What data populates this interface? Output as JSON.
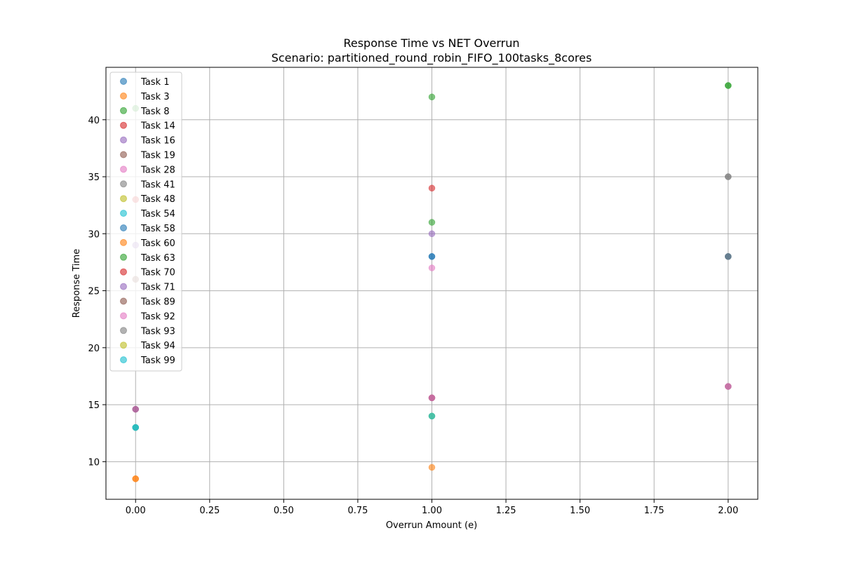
{
  "chart_data": {
    "type": "scatter",
    "title": "Response Time vs NET Overrun",
    "subtitle": "Scenario: partitioned_round_robin_FIFO_100tasks_8cores",
    "xlabel": "Overrun Amount (e)",
    "ylabel": "Response Time",
    "xlim": [
      -0.1,
      2.1
    ],
    "ylim": [
      6.7,
      44.6
    ],
    "xticks": [
      0.0,
      0.25,
      0.5,
      0.75,
      1.0,
      1.25,
      1.5,
      1.75,
      2.0
    ],
    "xtick_labels": [
      "0.00",
      "0.25",
      "0.50",
      "0.75",
      "1.00",
      "1.25",
      "1.50",
      "1.75",
      "2.00"
    ],
    "yticks": [
      10,
      15,
      20,
      25,
      30,
      35,
      40
    ],
    "ytick_labels": [
      "10",
      "15",
      "20",
      "25",
      "30",
      "35",
      "40"
    ],
    "grid": true,
    "legend_position": "top-left",
    "series": [
      {
        "name": "Task 1",
        "color": "#1f77b4",
        "points": [
          [
            0,
            13
          ],
          [
            1,
            28
          ],
          [
            2,
            28
          ]
        ]
      },
      {
        "name": "Task 3",
        "color": "#ff7f0e",
        "points": [
          [
            0,
            8.5
          ],
          [
            1,
            9.5
          ]
        ]
      },
      {
        "name": "Task 8",
        "color": "#2ca02c",
        "points": [
          [
            0,
            41
          ],
          [
            1,
            42
          ],
          [
            2,
            43
          ]
        ]
      },
      {
        "name": "Task 14",
        "color": "#d62728",
        "points": [
          [
            0,
            33
          ],
          [
            1,
            34
          ]
        ]
      },
      {
        "name": "Task 16",
        "color": "#9467bd",
        "points": [
          [
            0,
            29
          ],
          [
            1,
            30
          ]
        ]
      },
      {
        "name": "Task 19",
        "color": "#8c564b",
        "points": [
          [
            0,
            26
          ]
        ]
      },
      {
        "name": "Task 28",
        "color": "#e377c2",
        "points": [
          [
            1,
            27
          ]
        ]
      },
      {
        "name": "Task 41",
        "color": "#7f7f7f",
        "points": [
          [
            2,
            35
          ],
          [
            2,
            28
          ]
        ]
      },
      {
        "name": "Task 48",
        "color": "#bcbd22",
        "points": [
          [
            0,
            13
          ]
        ]
      },
      {
        "name": "Task 54",
        "color": "#17becf",
        "points": [
          [
            0,
            13
          ],
          [
            1,
            14
          ]
        ]
      },
      {
        "name": "Task 58",
        "color": "#1f77b4",
        "points": [
          [
            1,
            28
          ],
          [
            2,
            28
          ]
        ]
      },
      {
        "name": "Task 60",
        "color": "#ff7f0e",
        "points": [
          [
            0,
            8.5
          ]
        ]
      },
      {
        "name": "Task 63",
        "color": "#2ca02c",
        "points": [
          [
            1,
            31
          ],
          [
            2,
            43
          ]
        ]
      },
      {
        "name": "Task 70",
        "color": "#d62728",
        "points": [
          [
            0,
            14.6
          ],
          [
            1,
            15.6
          ]
        ]
      },
      {
        "name": "Task 71",
        "color": "#9467bd",
        "points": [
          [
            0,
            14.6
          ],
          [
            1,
            15.6
          ],
          [
            2,
            16.6
          ]
        ]
      },
      {
        "name": "Task 89",
        "color": "#8c564b",
        "points": [
          [
            1,
            15.6
          ],
          [
            2,
            16.6
          ]
        ]
      },
      {
        "name": "Task 92",
        "color": "#e377c2",
        "points": [
          [
            1,
            15.6
          ],
          [
            2,
            16.6
          ]
        ]
      },
      {
        "name": "Task 93",
        "color": "#7f7f7f",
        "points": [
          [
            2,
            35
          ],
          [
            2,
            28
          ]
        ]
      },
      {
        "name": "Task 94",
        "color": "#bcbd22",
        "points": [
          [
            1,
            14
          ]
        ]
      },
      {
        "name": "Task 99",
        "color": "#17becf",
        "points": [
          [
            0,
            13
          ],
          [
            1,
            14
          ]
        ]
      }
    ]
  }
}
